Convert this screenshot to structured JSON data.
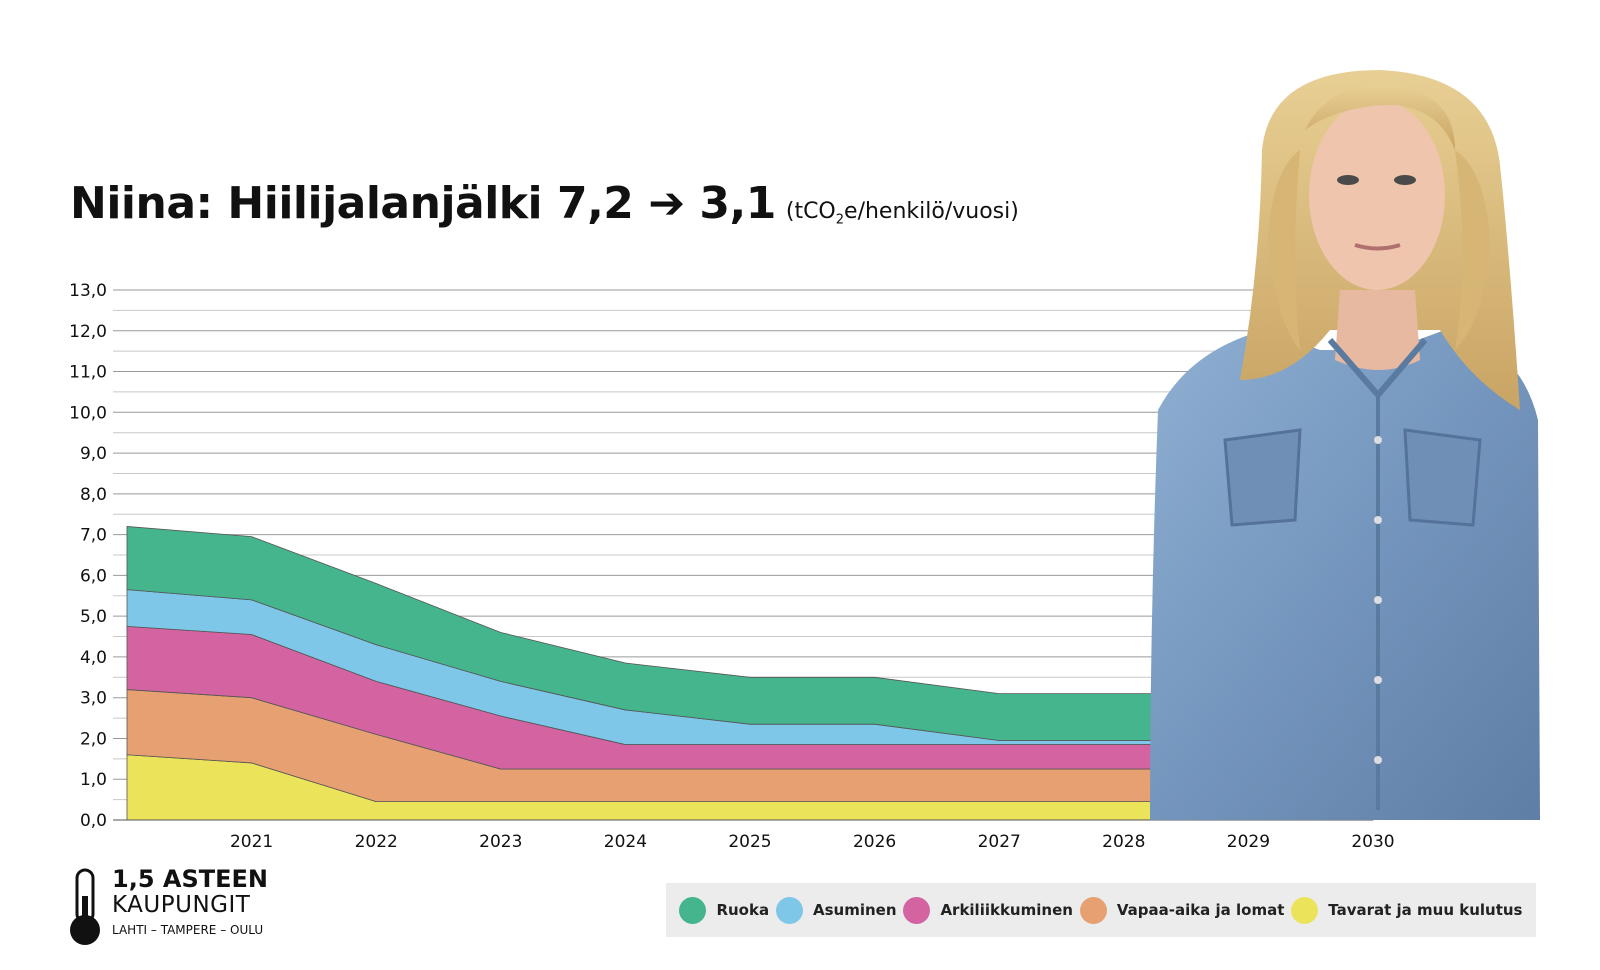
{
  "title": {
    "main": "Niina: Hiilijalanjälki 7,2 ➔ 3,1",
    "unit_open": "(tCO",
    "unit_sub": "2",
    "unit_close": "e/henkilö/vuosi)"
  },
  "logo": {
    "line1": "1,5 ASTEEN",
    "line2": "KAUPUNGIT",
    "line3": "LAHTI – TAMPERE – OULU"
  },
  "chart_data": {
    "type": "area",
    "stacked": true,
    "x": [
      2020,
      2021,
      2022,
      2023,
      2024,
      2025,
      2026,
      2027,
      2028,
      2029,
      2030
    ],
    "x_tick_labels": [
      "2021",
      "2022",
      "2023",
      "2024",
      "2025",
      "2026",
      "2027",
      "2028",
      "2029",
      "2030"
    ],
    "y_tick_labels": [
      "0,0",
      "1,0",
      "2,0",
      "3,0",
      "4,0",
      "5,0",
      "6,0",
      "7,0",
      "8,0",
      "9,0",
      "10,0",
      "11,0",
      "12,0",
      "13,0"
    ],
    "ylim": [
      0,
      13
    ],
    "grid": true,
    "legend_position": "bottom-right",
    "series": [
      {
        "name": "Tavarat ja muu kulutus",
        "color": "#ebe45a",
        "values": [
          1.6,
          1.4,
          0.45,
          0.45,
          0.45,
          0.45,
          0.45,
          0.45,
          0.45,
          0.45,
          0.45
        ]
      },
      {
        "name": "Vapaa-aika ja lomat",
        "color": "#e7a071",
        "values": [
          1.6,
          1.6,
          1.65,
          0.8,
          0.8,
          0.8,
          0.8,
          0.8,
          0.8,
          0.8,
          0.8
        ]
      },
      {
        "name": "Arkiliikkuminen",
        "color": "#d463a1",
        "values": [
          1.55,
          1.55,
          1.3,
          1.3,
          0.6,
          0.6,
          0.6,
          0.6,
          0.6,
          0.6,
          0.6
        ]
      },
      {
        "name": "Asuminen",
        "color": "#7ec7e8",
        "values": [
          0.9,
          0.85,
          0.9,
          0.85,
          0.85,
          0.5,
          0.5,
          0.1,
          0.1,
          0.1,
          0.1
        ]
      },
      {
        "name": "Ruoka",
        "color": "#44b58c",
        "values": [
          1.55,
          1.55,
          1.5,
          1.2,
          1.15,
          1.15,
          1.15,
          1.15,
          1.15,
          1.15,
          1.15
        ]
      }
    ],
    "legend_order": [
      "Ruoka",
      "Asuminen",
      "Arkiliikkuminen",
      "Vapaa-aika ja lomat",
      "Tavarat ja muu kulutus"
    ]
  }
}
